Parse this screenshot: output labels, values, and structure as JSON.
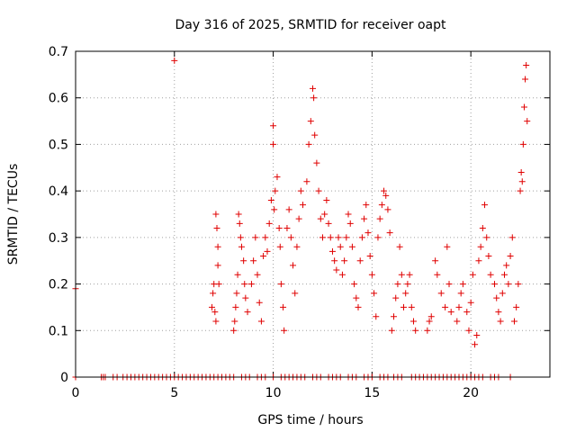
{
  "chart_data": {
    "type": "scatter",
    "title": "Day 316 of 2025, SRMTID for receiver oapt",
    "xlabel": "GPS time / hours",
    "ylabel": "SRMTID / TECUs",
    "xlim": [
      0,
      24.0
    ],
    "ylim": [
      0,
      0.7
    ],
    "grid": true,
    "x_ticks": [
      0,
      5,
      10,
      15,
      20
    ],
    "x_tick_labels": [
      "0",
      "5",
      "10",
      "15",
      "20"
    ],
    "y_ticks": [
      0,
      0.1,
      0.2,
      0.3,
      0.4,
      0.5,
      0.6,
      0.7
    ],
    "y_tick_labels": [
      "0",
      "0.1",
      "0.2",
      "0.3",
      "0.4",
      "0.5",
      "0.6",
      "0.7"
    ],
    "marker_color": "#e00000",
    "series": [
      {
        "name": "SRMTID",
        "points": [
          [
            0.0,
            0.19
          ],
          [
            0.0,
            0.0
          ],
          [
            1.3,
            0.0
          ],
          [
            1.4,
            0.0
          ],
          [
            1.5,
            0.0
          ],
          [
            1.9,
            0.0
          ],
          [
            2.1,
            0.0
          ],
          [
            2.4,
            0.0
          ],
          [
            2.6,
            0.0
          ],
          [
            2.8,
            0.0
          ],
          [
            3.0,
            0.0
          ],
          [
            3.2,
            0.0
          ],
          [
            3.4,
            0.0
          ],
          [
            3.6,
            0.0
          ],
          [
            3.8,
            0.0
          ],
          [
            4.0,
            0.0
          ],
          [
            4.2,
            0.0
          ],
          [
            4.4,
            0.0
          ],
          [
            4.6,
            0.0
          ],
          [
            4.8,
            0.0
          ],
          [
            5.0,
            0.68
          ],
          [
            5.0,
            0.0
          ],
          [
            5.2,
            0.0
          ],
          [
            5.4,
            0.0
          ],
          [
            5.6,
            0.0
          ],
          [
            5.8,
            0.0
          ],
          [
            6.0,
            0.0
          ],
          [
            6.2,
            0.0
          ],
          [
            6.4,
            0.0
          ],
          [
            6.6,
            0.0
          ],
          [
            6.8,
            0.0
          ],
          [
            7.0,
            0.0
          ],
          [
            7.2,
            0.0
          ],
          [
            7.4,
            0.0
          ],
          [
            7.6,
            0.0
          ],
          [
            7.8,
            0.0
          ],
          [
            8.0,
            0.0
          ],
          [
            6.9,
            0.15
          ],
          [
            6.95,
            0.18
          ],
          [
            7.0,
            0.2
          ],
          [
            7.05,
            0.14
          ],
          [
            7.1,
            0.12
          ],
          [
            7.1,
            0.35
          ],
          [
            7.15,
            0.32
          ],
          [
            7.2,
            0.28
          ],
          [
            7.2,
            0.24
          ],
          [
            7.25,
            0.2
          ],
          [
            8.0,
            0.1
          ],
          [
            8.05,
            0.12
          ],
          [
            8.1,
            0.15
          ],
          [
            8.15,
            0.18
          ],
          [
            8.2,
            0.22
          ],
          [
            8.25,
            0.35
          ],
          [
            8.3,
            0.33
          ],
          [
            8.35,
            0.3
          ],
          [
            8.4,
            0.28
          ],
          [
            8.5,
            0.25
          ],
          [
            8.55,
            0.2
          ],
          [
            8.6,
            0.17
          ],
          [
            8.7,
            0.14
          ],
          [
            8.9,
            0.2
          ],
          [
            9.0,
            0.25
          ],
          [
            9.1,
            0.3
          ],
          [
            9.2,
            0.22
          ],
          [
            9.3,
            0.16
          ],
          [
            9.4,
            0.12
          ],
          [
            9.5,
            0.26
          ],
          [
            9.6,
            0.3
          ],
          [
            9.7,
            0.27
          ],
          [
            9.8,
            0.33
          ],
          [
            9.9,
            0.38
          ],
          [
            10.0,
            0.54
          ],
          [
            10.0,
            0.5
          ],
          [
            10.05,
            0.36
          ],
          [
            10.1,
            0.4
          ],
          [
            10.2,
            0.43
          ],
          [
            10.3,
            0.32
          ],
          [
            10.35,
            0.28
          ],
          [
            10.4,
            0.2
          ],
          [
            10.5,
            0.15
          ],
          [
            10.55,
            0.1
          ],
          [
            10.7,
            0.32
          ],
          [
            10.8,
            0.36
          ],
          [
            10.9,
            0.3
          ],
          [
            11.0,
            0.24
          ],
          [
            11.1,
            0.18
          ],
          [
            11.2,
            0.28
          ],
          [
            11.3,
            0.34
          ],
          [
            11.4,
            0.4
          ],
          [
            11.5,
            0.37
          ],
          [
            11.7,
            0.42
          ],
          [
            11.8,
            0.5
          ],
          [
            11.9,
            0.55
          ],
          [
            12.0,
            0.62
          ],
          [
            12.05,
            0.6
          ],
          [
            12.1,
            0.52
          ],
          [
            12.2,
            0.46
          ],
          [
            12.3,
            0.4
          ],
          [
            12.4,
            0.34
          ],
          [
            12.5,
            0.3
          ],
          [
            12.6,
            0.35
          ],
          [
            12.7,
            0.38
          ],
          [
            12.8,
            0.33
          ],
          [
            12.9,
            0.3
          ],
          [
            13.0,
            0.27
          ],
          [
            13.1,
            0.25
          ],
          [
            13.2,
            0.23
          ],
          [
            13.3,
            0.3
          ],
          [
            13.4,
            0.28
          ],
          [
            13.5,
            0.22
          ],
          [
            13.6,
            0.25
          ],
          [
            13.7,
            0.3
          ],
          [
            13.8,
            0.35
          ],
          [
            13.9,
            0.33
          ],
          [
            14.0,
            0.28
          ],
          [
            14.1,
            0.2
          ],
          [
            14.2,
            0.17
          ],
          [
            14.3,
            0.15
          ],
          [
            14.4,
            0.25
          ],
          [
            14.5,
            0.3
          ],
          [
            14.6,
            0.34
          ],
          [
            14.7,
            0.37
          ],
          [
            14.8,
            0.31
          ],
          [
            14.9,
            0.26
          ],
          [
            15.0,
            0.22
          ],
          [
            15.1,
            0.18
          ],
          [
            15.2,
            0.13
          ],
          [
            15.3,
            0.3
          ],
          [
            15.4,
            0.34
          ],
          [
            15.5,
            0.37
          ],
          [
            15.6,
            0.4
          ],
          [
            15.7,
            0.39
          ],
          [
            15.8,
            0.36
          ],
          [
            15.9,
            0.31
          ],
          [
            16.0,
            0.1
          ],
          [
            16.1,
            0.13
          ],
          [
            16.2,
            0.17
          ],
          [
            16.3,
            0.2
          ],
          [
            16.4,
            0.28
          ],
          [
            16.5,
            0.22
          ],
          [
            16.6,
            0.15
          ],
          [
            16.7,
            0.18
          ],
          [
            16.8,
            0.2
          ],
          [
            16.9,
            0.22
          ],
          [
            17.0,
            0.15
          ],
          [
            17.1,
            0.12
          ],
          [
            17.2,
            0.1
          ],
          [
            17.8,
            0.1
          ],
          [
            17.9,
            0.12
          ],
          [
            18.0,
            0.13
          ],
          [
            18.2,
            0.25
          ],
          [
            18.3,
            0.22
          ],
          [
            18.5,
            0.18
          ],
          [
            18.7,
            0.15
          ],
          [
            18.8,
            0.28
          ],
          [
            18.9,
            0.2
          ],
          [
            19.0,
            0.14
          ],
          [
            19.3,
            0.12
          ],
          [
            19.4,
            0.15
          ],
          [
            19.5,
            0.18
          ],
          [
            19.6,
            0.2
          ],
          [
            19.8,
            0.14
          ],
          [
            19.9,
            0.1
          ],
          [
            20.0,
            0.16
          ],
          [
            20.1,
            0.22
          ],
          [
            20.2,
            0.07
          ],
          [
            20.3,
            0.09
          ],
          [
            20.4,
            0.25
          ],
          [
            20.5,
            0.28
          ],
          [
            20.6,
            0.32
          ],
          [
            20.7,
            0.37
          ],
          [
            20.8,
            0.3
          ],
          [
            20.9,
            0.26
          ],
          [
            21.0,
            0.22
          ],
          [
            21.2,
            0.2
          ],
          [
            21.3,
            0.17
          ],
          [
            21.4,
            0.14
          ],
          [
            21.5,
            0.12
          ],
          [
            21.6,
            0.18
          ],
          [
            21.7,
            0.22
          ],
          [
            21.8,
            0.24
          ],
          [
            21.9,
            0.2
          ],
          [
            22.0,
            0.26
          ],
          [
            22.1,
            0.3
          ],
          [
            22.2,
            0.12
          ],
          [
            22.3,
            0.15
          ],
          [
            22.4,
            0.2
          ],
          [
            22.5,
            0.4
          ],
          [
            22.55,
            0.44
          ],
          [
            22.6,
            0.42
          ],
          [
            22.65,
            0.5
          ],
          [
            22.7,
            0.58
          ],
          [
            22.75,
            0.64
          ],
          [
            22.8,
            0.67
          ],
          [
            22.85,
            0.55
          ],
          [
            8.4,
            0.0
          ],
          [
            8.6,
            0.0
          ],
          [
            8.8,
            0.0
          ],
          [
            9.2,
            0.0
          ],
          [
            9.4,
            0.0
          ],
          [
            9.6,
            0.0
          ],
          [
            10.0,
            0.0
          ],
          [
            10.4,
            0.0
          ],
          [
            10.6,
            0.0
          ],
          [
            10.8,
            0.0
          ],
          [
            11.0,
            0.0
          ],
          [
            11.2,
            0.0
          ],
          [
            11.4,
            0.0
          ],
          [
            11.6,
            0.0
          ],
          [
            12.0,
            0.0
          ],
          [
            12.2,
            0.0
          ],
          [
            12.4,
            0.0
          ],
          [
            12.8,
            0.0
          ],
          [
            13.0,
            0.0
          ],
          [
            13.2,
            0.0
          ],
          [
            13.4,
            0.0
          ],
          [
            13.8,
            0.0
          ],
          [
            14.0,
            0.0
          ],
          [
            14.2,
            0.0
          ],
          [
            14.6,
            0.0
          ],
          [
            14.8,
            0.0
          ],
          [
            15.0,
            0.0
          ],
          [
            15.4,
            0.0
          ],
          [
            15.6,
            0.0
          ],
          [
            15.8,
            0.0
          ],
          [
            16.1,
            0.0
          ],
          [
            16.3,
            0.0
          ],
          [
            16.5,
            0.0
          ],
          [
            17.0,
            0.0
          ],
          [
            17.2,
            0.0
          ],
          [
            17.4,
            0.0
          ],
          [
            17.6,
            0.0
          ],
          [
            17.8,
            0.0
          ],
          [
            18.0,
            0.0
          ],
          [
            18.2,
            0.0
          ],
          [
            18.4,
            0.0
          ],
          [
            18.6,
            0.0
          ],
          [
            18.8,
            0.0
          ],
          [
            19.0,
            0.0
          ],
          [
            19.2,
            0.0
          ],
          [
            19.4,
            0.0
          ],
          [
            19.6,
            0.0
          ],
          [
            19.8,
            0.0
          ],
          [
            20.0,
            0.0
          ],
          [
            20.2,
            0.0
          ],
          [
            20.4,
            0.0
          ],
          [
            20.6,
            0.0
          ],
          [
            21.0,
            0.0
          ],
          [
            21.2,
            0.0
          ],
          [
            21.4,
            0.0
          ],
          [
            22.0,
            0.0
          ]
        ]
      }
    ]
  }
}
